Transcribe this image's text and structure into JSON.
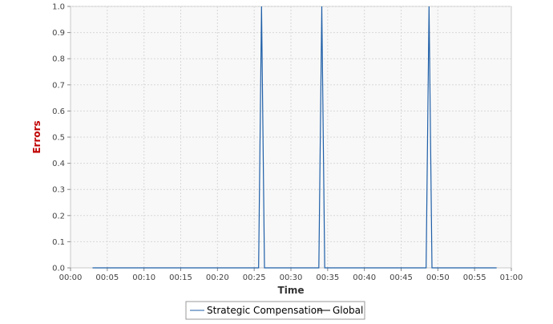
{
  "chart_data": {
    "type": "line",
    "title": "",
    "xlabel": "Time",
    "ylabel": "Errors",
    "xlim": [
      "00:00",
      "01:00"
    ],
    "ylim": [
      0,
      1.0
    ],
    "x_tick_labels": [
      "00:00",
      "00:05",
      "00:10",
      "00:15",
      "00:20",
      "00:25",
      "00:30",
      "00:35",
      "00:40",
      "00:45",
      "00:50",
      "00:55",
      "01:00"
    ],
    "y_tick_labels": [
      "0.0",
      "0.1",
      "0.2",
      "0.3",
      "0.4",
      "0.5",
      "0.6",
      "0.7",
      "0.8",
      "0.9",
      "1.0"
    ],
    "grid": true,
    "legend_position": "bottom",
    "series": [
      {
        "name": "Strategic Compensation",
        "color": "#1f5fa8",
        "points": [
          {
            "x": "00:03",
            "y": 0
          },
          {
            "x": "00:25:36",
            "y": 0
          },
          {
            "x": "00:26:00",
            "y": 1.0
          },
          {
            "x": "00:26:24",
            "y": 0
          },
          {
            "x": "00:33:48",
            "y": 0
          },
          {
            "x": "00:34:12",
            "y": 1.0
          },
          {
            "x": "00:34:36",
            "y": 0
          },
          {
            "x": "00:48:24",
            "y": 0
          },
          {
            "x": "00:48:48",
            "y": 1.0
          },
          {
            "x": "00:49:12",
            "y": 0
          },
          {
            "x": "00:58",
            "y": 0
          }
        ]
      },
      {
        "name": "Global",
        "color": "#000000",
        "points": []
      }
    ]
  }
}
